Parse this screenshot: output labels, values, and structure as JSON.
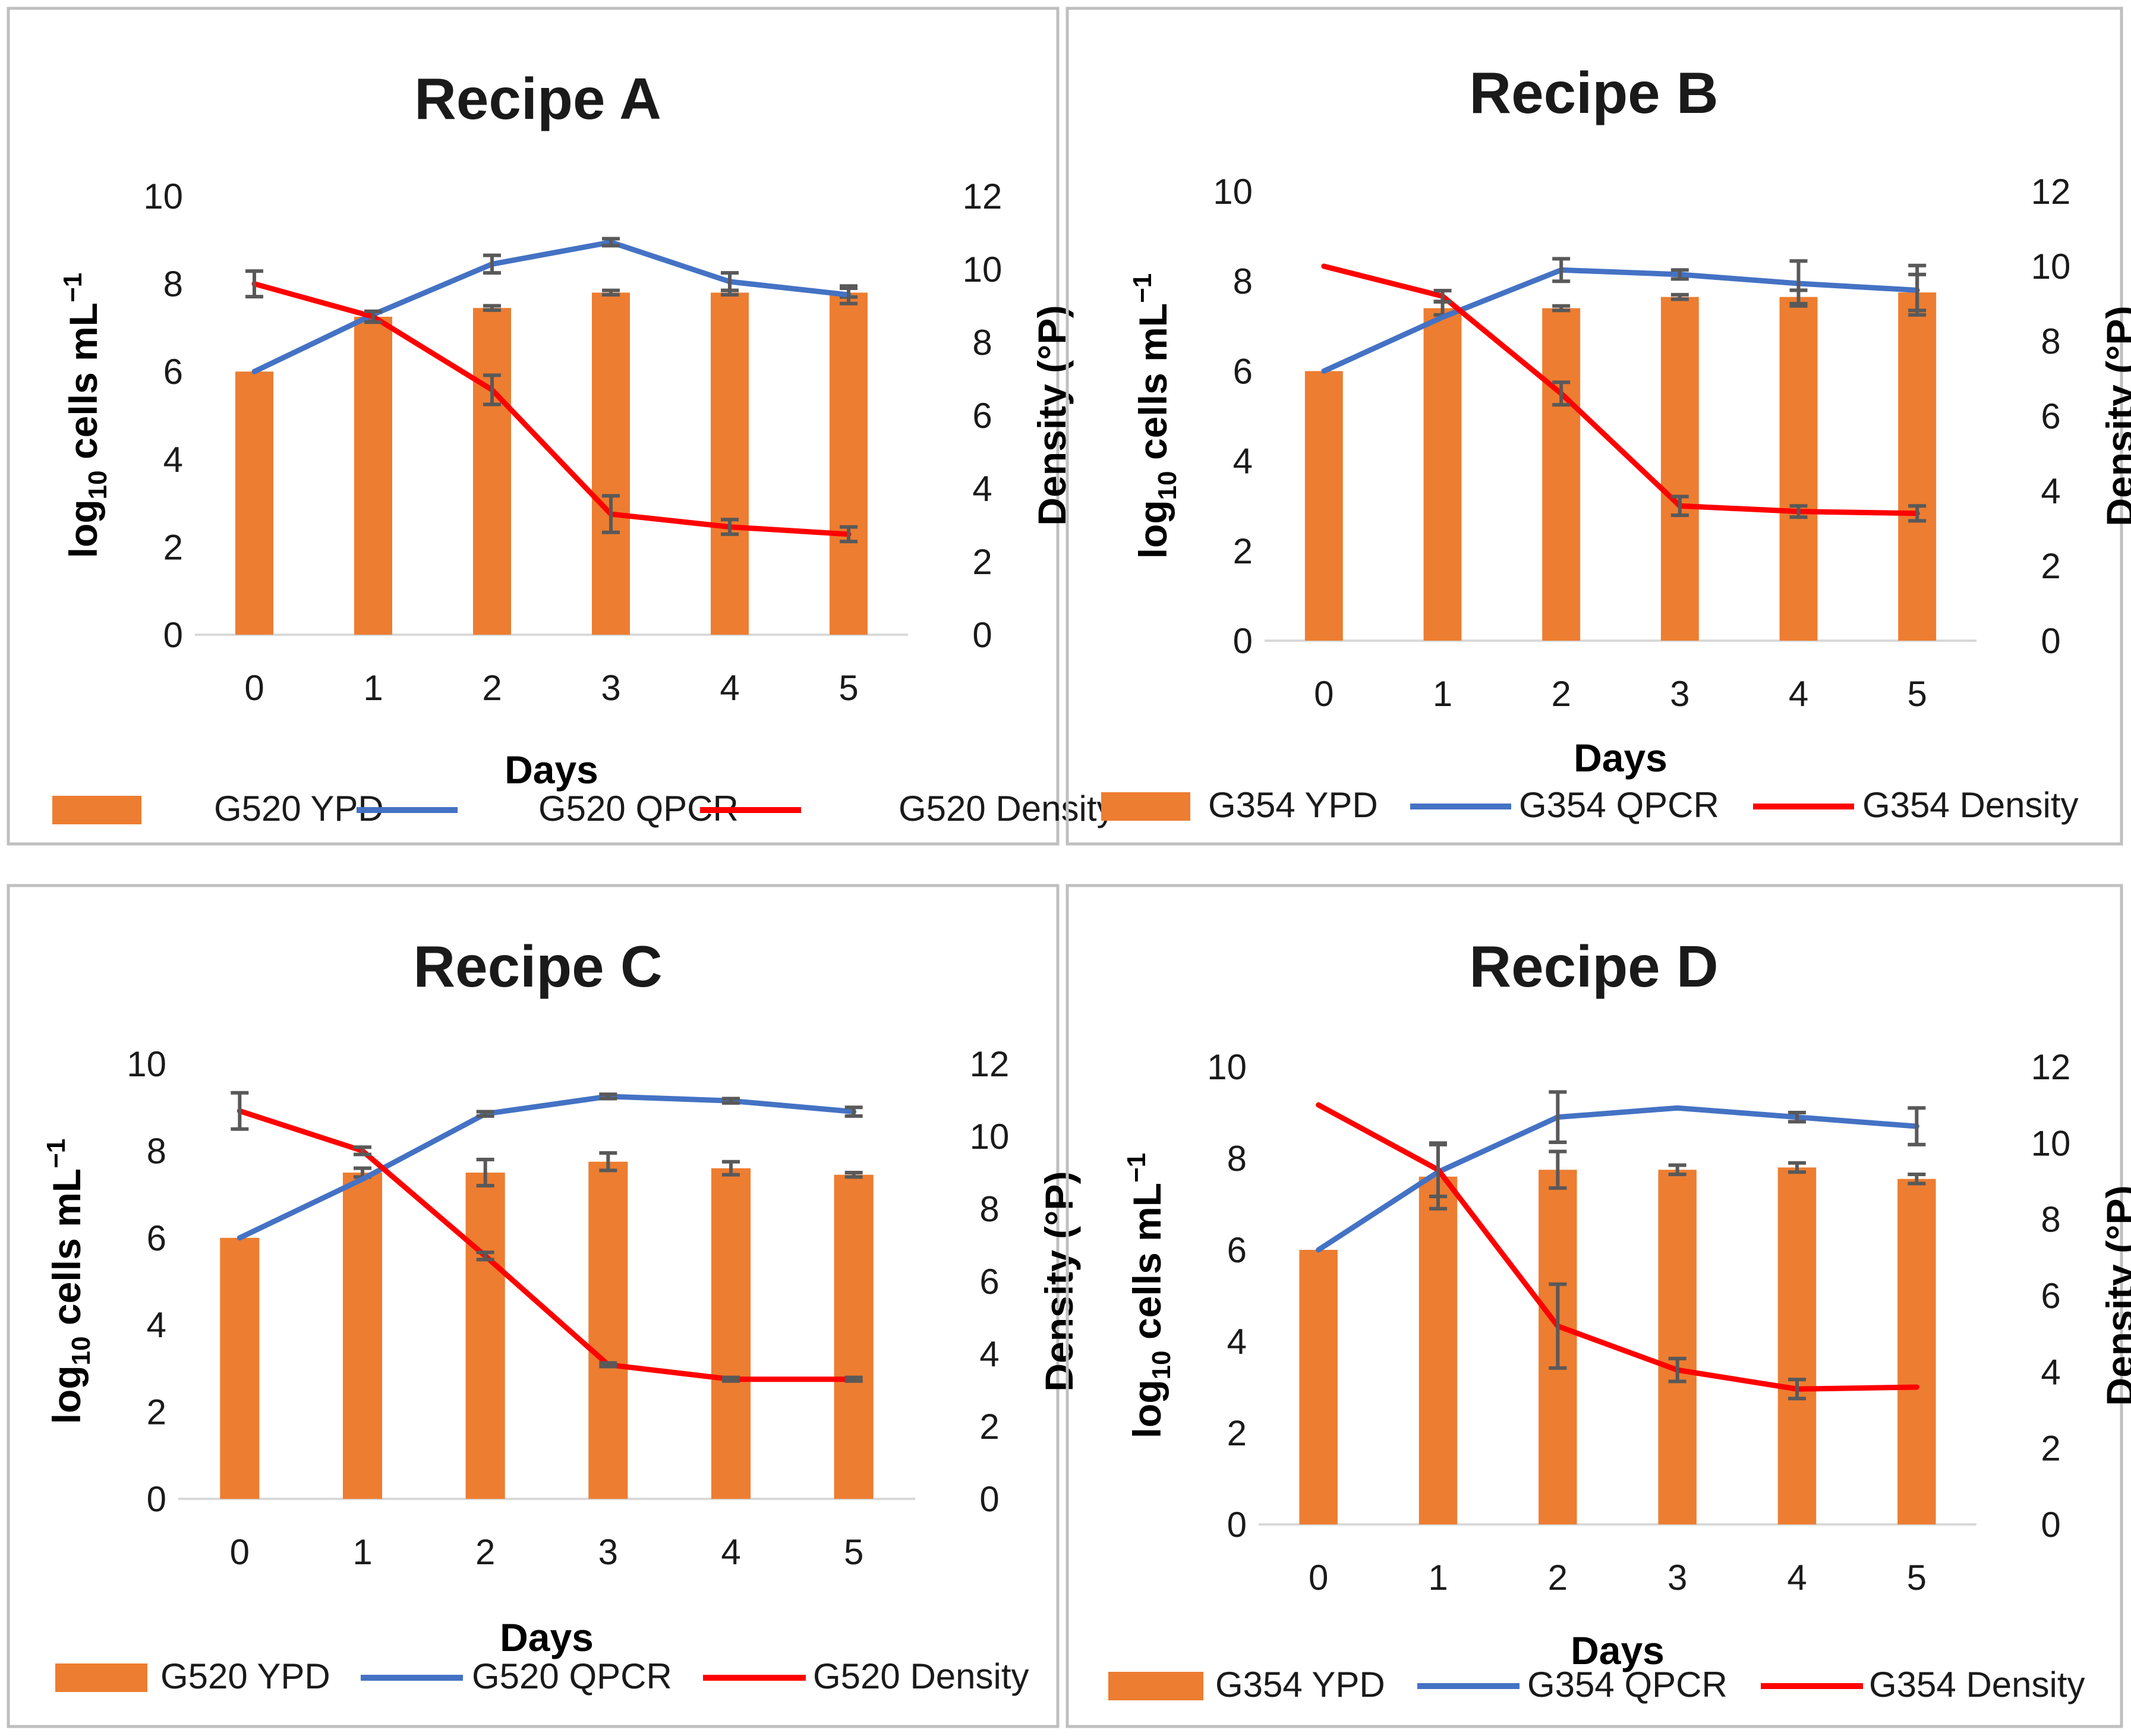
{
  "figure": {
    "axis_titles": {
      "y_left_base": "log",
      "y_left_sub": "10",
      "y_left_rest": " cells mL",
      "y_left_sup": "−1",
      "y_right": "Density (°P)",
      "x": "Days"
    }
  },
  "colors": {
    "ypd_bar": "#ED7D31",
    "qpcr_line": "#4472C4",
    "density_line": "#FF0000",
    "error_bar": "#595959",
    "axis": "#D9D9D9",
    "frame": "#BFBFBF"
  },
  "chart_data": [
    {
      "type": "bar",
      "title": "Recipe A",
      "xlabel": "Days",
      "ylabel": "log10 cells mL−1",
      "y2label": "Density (°P)",
      "categories": [
        "0",
        "1",
        "2",
        "3",
        "4",
        "5"
      ],
      "ylim": [
        0,
        10
      ],
      "y_ticks": [
        "0",
        "2",
        "4",
        "6",
        "8",
        "10"
      ],
      "y2lim": [
        0,
        12
      ],
      "y2_ticks": [
        "0",
        "2",
        "4",
        "6",
        "8",
        "10",
        "12"
      ],
      "legend_position": "bottom",
      "series": [
        {
          "name": "G520 YPD",
          "kind": "bar",
          "axis": "left",
          "values": [
            6.0,
            7.25,
            7.45,
            7.8,
            7.8,
            7.8
          ],
          "errors": [
            0,
            0.1,
            0.05,
            0.05,
            0.05,
            0.1
          ]
        },
        {
          "name": "G520 QPCR",
          "kind": "line",
          "axis": "left",
          "values": [
            6.0,
            7.3,
            8.45,
            8.95,
            8.05,
            7.75
          ],
          "errors": [
            0,
            0,
            0.2,
            0.08,
            0.2,
            0.2
          ]
        },
        {
          "name": "G520 Density",
          "kind": "line",
          "axis": "right",
          "values": [
            9.6,
            8.7,
            6.7,
            3.3,
            2.95,
            2.75
          ],
          "errors": [
            0.35,
            0.15,
            0.4,
            0.5,
            0.2,
            0.2
          ]
        }
      ]
    },
    {
      "type": "bar",
      "title": "Recipe B",
      "xlabel": "Days",
      "ylabel": "log10 cells mL−1",
      "y2label": "Density (°P)",
      "categories": [
        "0",
        "1",
        "2",
        "3",
        "4",
        "5"
      ],
      "ylim": [
        0,
        10
      ],
      "y_ticks": [
        "0",
        "2",
        "4",
        "6",
        "8",
        "10"
      ],
      "y2lim": [
        0,
        12
      ],
      "y2_ticks": [
        "0",
        "2",
        "4",
        "6",
        "8",
        "10",
        "12"
      ],
      "legend_position": "bottom",
      "series": [
        {
          "name": "G354 YPD",
          "kind": "bar",
          "axis": "left",
          "values": [
            6.0,
            7.4,
            7.4,
            7.65,
            7.65,
            7.75
          ],
          "errors": [
            0,
            0.15,
            0.05,
            0.05,
            0.15,
            0.4
          ]
        },
        {
          "name": "G354 QPCR",
          "kind": "line",
          "axis": "left",
          "values": [
            6.0,
            7.2,
            8.25,
            8.15,
            7.95,
            7.8
          ],
          "errors": [
            0,
            0,
            0.25,
            0.1,
            0.5,
            0.55
          ]
        },
        {
          "name": "G354 Density",
          "kind": "line",
          "axis": "right",
          "values": [
            10.0,
            9.2,
            6.6,
            3.6,
            3.45,
            3.4
          ],
          "errors": [
            0,
            0.15,
            0.3,
            0.25,
            0.15,
            0.2
          ]
        }
      ]
    },
    {
      "type": "bar",
      "title": "Recipe C",
      "xlabel": "Days",
      "ylabel": "log10 cells mL−1",
      "y2label": "Density (°P)",
      "categories": [
        "0",
        "1",
        "2",
        "3",
        "4",
        "5"
      ],
      "ylim": [
        0,
        10
      ],
      "y_ticks": [
        "0",
        "2",
        "4",
        "6",
        "8",
        "10"
      ],
      "y2lim": [
        0,
        12
      ],
      "y2_ticks": [
        "0",
        "2",
        "4",
        "6",
        "8",
        "10",
        "12"
      ],
      "legend_position": "bottom",
      "series": [
        {
          "name": "G520 YPD",
          "kind": "bar",
          "axis": "left",
          "values": [
            6.0,
            7.5,
            7.5,
            7.75,
            7.6,
            7.45
          ],
          "errors": [
            0,
            0.1,
            0.3,
            0.2,
            0.15,
            0.05
          ]
        },
        {
          "name": "G520 QPCR",
          "kind": "line",
          "axis": "left",
          "values": [
            6.0,
            7.35,
            8.85,
            9.25,
            9.15,
            8.9
          ],
          "errors": [
            0,
            0,
            0.05,
            0.05,
            0.05,
            0.1
          ]
        },
        {
          "name": "G520 Density",
          "kind": "line",
          "axis": "right",
          "values": [
            10.7,
            9.6,
            6.7,
            3.7,
            3.3,
            3.3
          ],
          "errors": [
            0.5,
            0.1,
            0.1,
            0.05,
            0.05,
            0.05
          ]
        }
      ]
    },
    {
      "type": "bar",
      "title": "Recipe D",
      "xlabel": "Days",
      "ylabel": "log10 cells mL−1",
      "y2label": "Density (°P)",
      "categories": [
        "0",
        "1",
        "2",
        "3",
        "4",
        "5"
      ],
      "ylim": [
        0,
        10
      ],
      "y_ticks": [
        "0",
        "2",
        "4",
        "6",
        "8",
        "10"
      ],
      "y2lim": [
        0,
        12
      ],
      "y2_ticks": [
        "0",
        "2",
        "4",
        "6",
        "8",
        "10",
        "12"
      ],
      "legend_position": "bottom",
      "series": [
        {
          "name": "G354 YPD",
          "kind": "bar",
          "axis": "left",
          "values": [
            6.0,
            7.6,
            7.75,
            7.75,
            7.8,
            7.55
          ],
          "errors": [
            0,
            0.7,
            0.4,
            0.1,
            0.1,
            0.1
          ]
        },
        {
          "name": "G354 QPCR",
          "kind": "line",
          "axis": "left",
          "values": [
            6.0,
            7.7,
            8.9,
            9.1,
            8.9,
            8.7
          ],
          "errors": [
            0,
            0,
            0.55,
            0,
            0.1,
            0.4
          ]
        },
        {
          "name": "G354 Density",
          "kind": "line",
          "axis": "right",
          "values": [
            11.0,
            9.3,
            5.2,
            4.05,
            3.55,
            3.6
          ],
          "errors": [
            0,
            0.7,
            1.1,
            0.3,
            0.25,
            0
          ]
        }
      ]
    }
  ]
}
